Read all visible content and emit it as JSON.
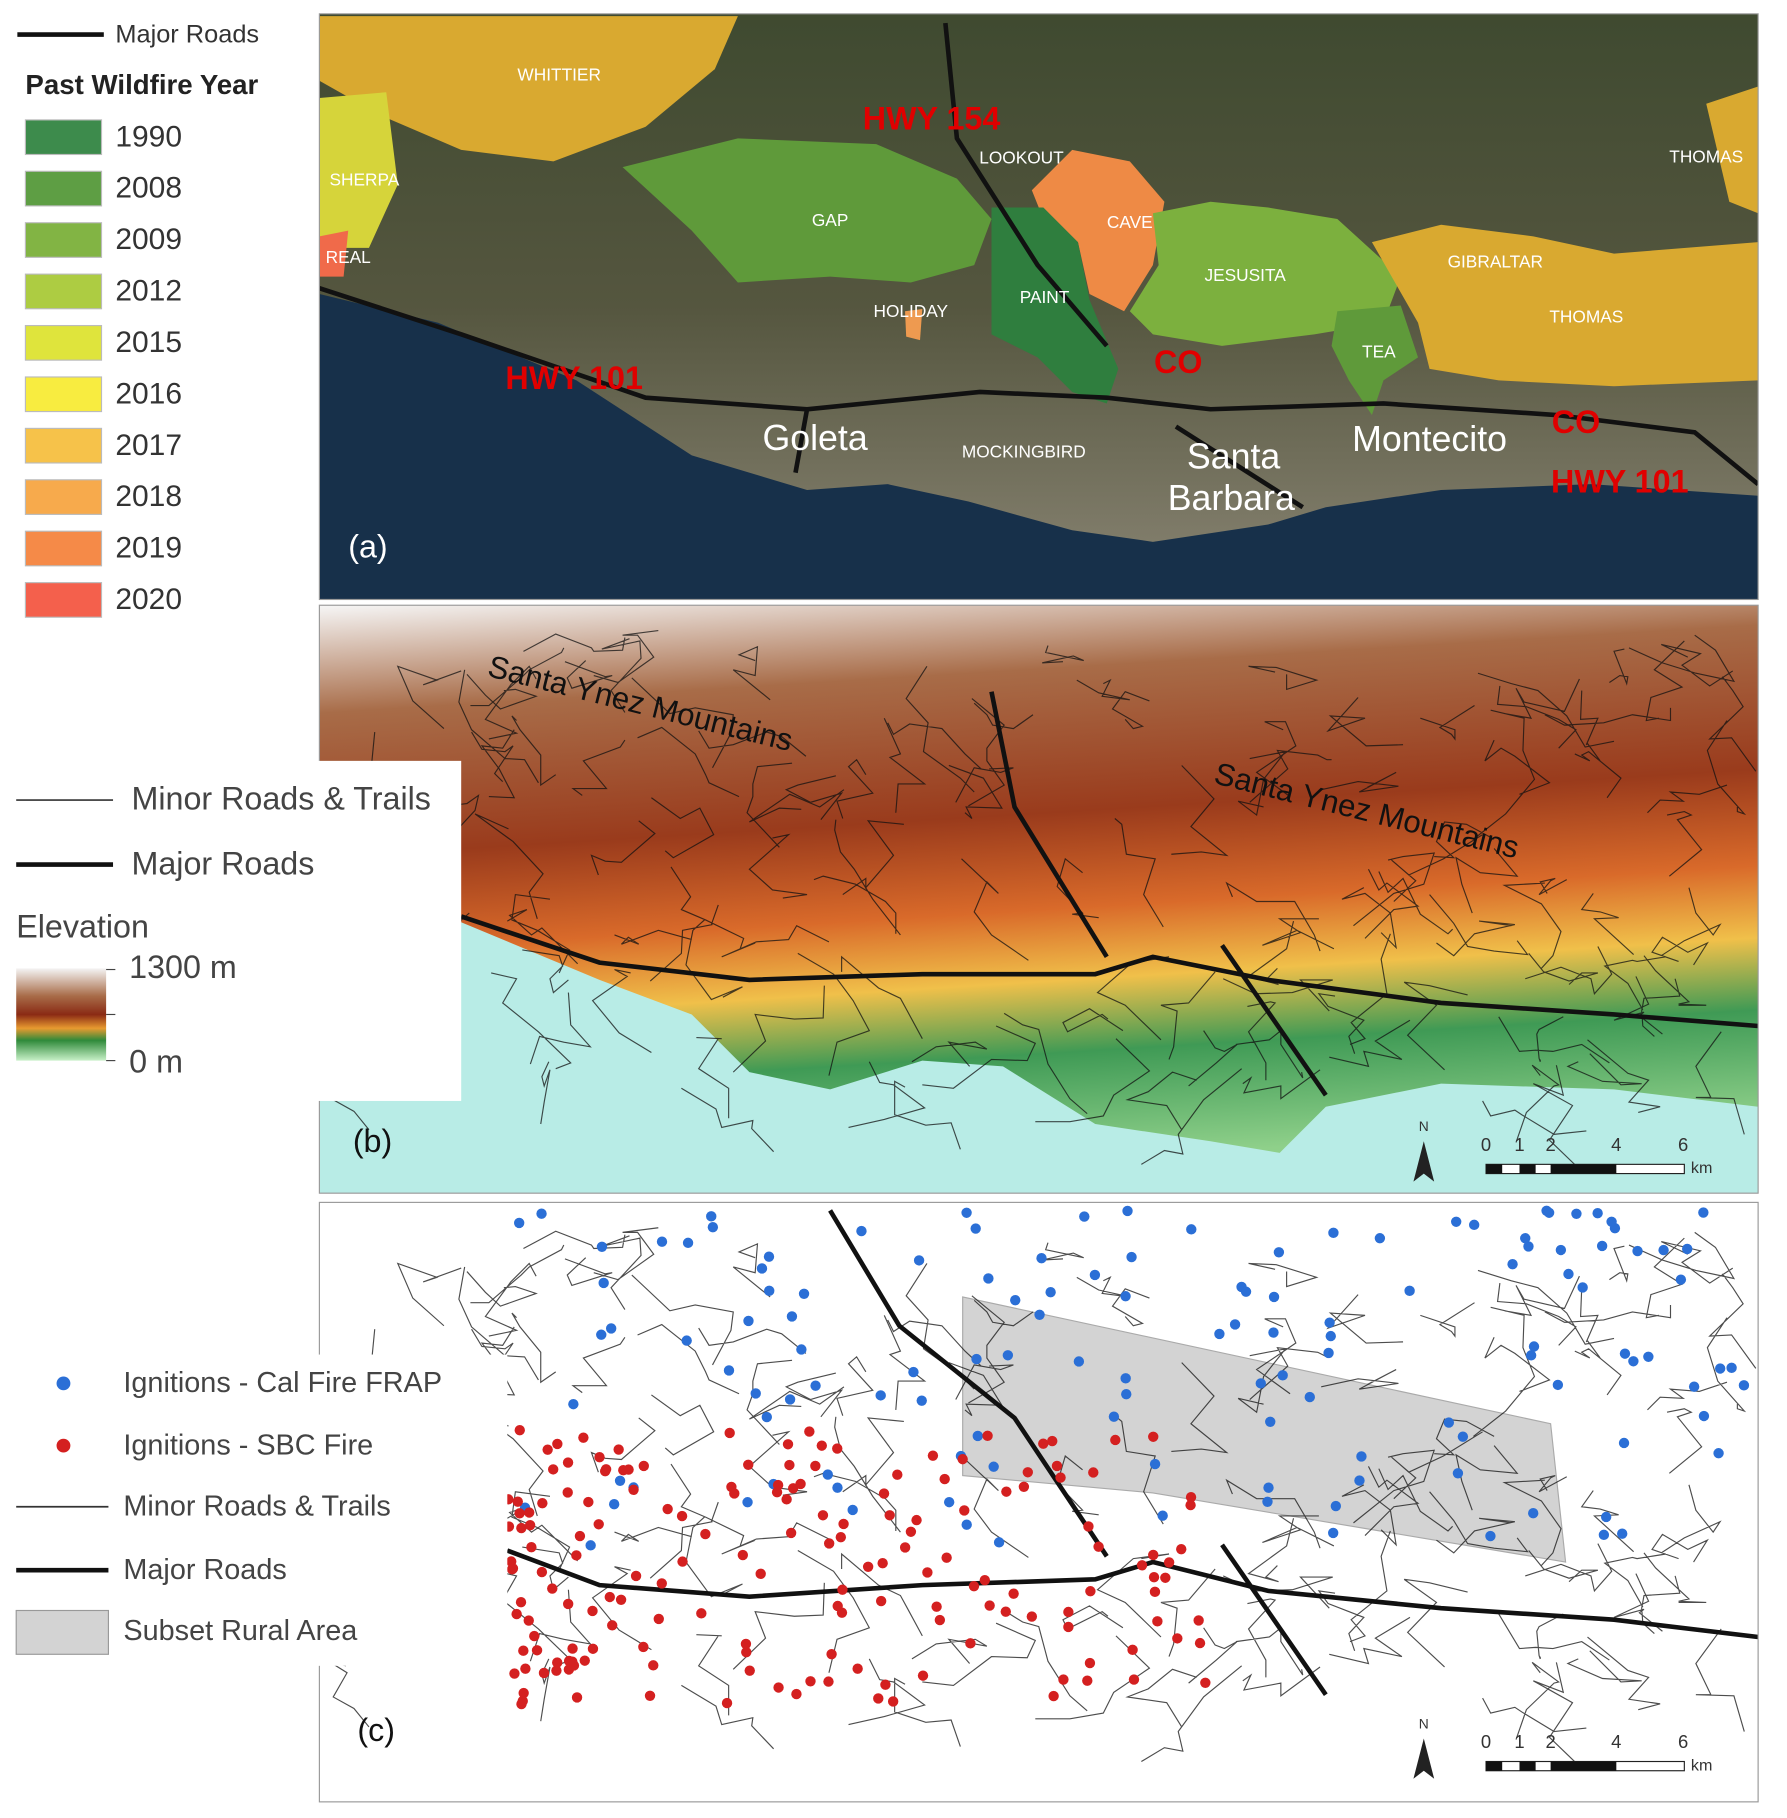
{
  "panel_a": {
    "label": "(a)",
    "legend": {
      "major_roads": "Major Roads",
      "title": "Past Wildfire Year",
      "years": [
        {
          "year": "1990",
          "color": "#3d8b4c"
        },
        {
          "year": "2008",
          "color": "#5e9e44"
        },
        {
          "year": "2009",
          "color": "#82b444"
        },
        {
          "year": "2012",
          "color": "#adcc42"
        },
        {
          "year": "2015",
          "color": "#dfe43c"
        },
        {
          "year": "2016",
          "color": "#f8ec40"
        },
        {
          "year": "2017",
          "color": "#f6c24a"
        },
        {
          "year": "2018",
          "color": "#f7aa4c"
        },
        {
          "year": "2019",
          "color": "#f58a48"
        },
        {
          "year": "2020",
          "color": "#f4604c"
        }
      ]
    },
    "fire_labels": [
      "WHITTIER",
      "SHERPA",
      "REAL",
      "GAP",
      "LOOKOUT",
      "CAVE",
      "PAINT",
      "HOLIDAY",
      "JESUSITA",
      "TEA",
      "GIBRALTAR",
      "THOMAS",
      "THOMAS",
      "MOCKINGBIRD"
    ],
    "road_labels": [
      "HWY 154",
      "HWY 101",
      "CO",
      "CO",
      "HWY 101"
    ],
    "places": [
      "Goleta",
      "Santa",
      "Barbara",
      "Montecito"
    ]
  },
  "panel_b": {
    "label": "(b)",
    "legend": {
      "minor": "Minor Roads & Trails",
      "major": "Major Roads",
      "title": "Elevation",
      "max": "1300 m",
      "min": "0 m"
    },
    "mountains": [
      "Santa Ynez Mountains",
      "Santa Ynez Mountains"
    ],
    "north": "N",
    "scale": [
      "0",
      "1",
      "2",
      "4",
      "6"
    ],
    "unit": "km"
  },
  "panel_c": {
    "label": "(c)",
    "legend": {
      "frap": "Ignitions - Cal Fire FRAP",
      "sbc": "Ignitions - SBC Fire",
      "minor": "Minor Roads & Trails",
      "major": "Major Roads",
      "subset": "Subset Rural Area"
    },
    "north": "N",
    "scale": [
      "0",
      "1",
      "2",
      "4",
      "6"
    ],
    "unit": "km"
  }
}
